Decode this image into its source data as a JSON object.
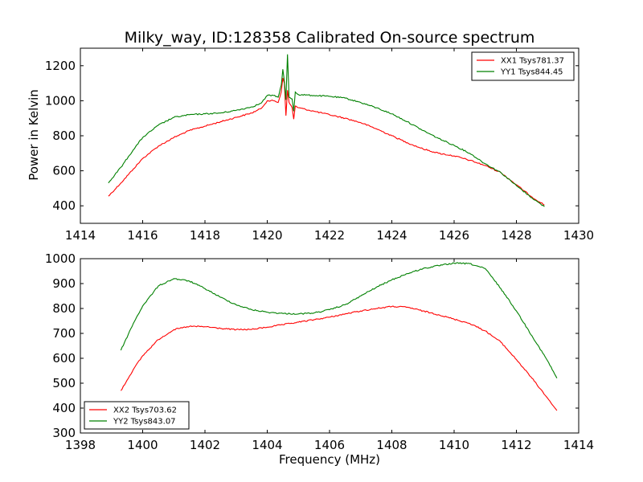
{
  "chart_data": [
    {
      "type": "line",
      "title": "Milky_way, ID:128358 Calibrated On-source spectrum",
      "xlabel": "",
      "ylabel": "Power in Kelvin",
      "xlim": [
        1414,
        1430
      ],
      "ylim": [
        300,
        1300
      ],
      "xticks": [
        1414,
        1416,
        1418,
        1420,
        1422,
        1424,
        1426,
        1428,
        1430
      ],
      "yticks": [
        400,
        600,
        800,
        1000,
        1200
      ],
      "legend_position": "top-right",
      "series": [
        {
          "name": "XX1 Tsys781.37",
          "color": "#ff0000",
          "x": [
            1414.9,
            1415.3,
            1415.7,
            1416.0,
            1416.5,
            1417.0,
            1417.5,
            1418.0,
            1418.5,
            1419.0,
            1419.5,
            1419.8,
            1420.0,
            1420.2,
            1420.35,
            1420.45,
            1420.5,
            1420.55,
            1420.6,
            1420.65,
            1420.7,
            1420.8,
            1420.85,
            1420.9,
            1421.0,
            1421.5,
            1422.0,
            1422.5,
            1423.0,
            1423.5,
            1424.0,
            1424.5,
            1425.0,
            1425.5,
            1426.0,
            1426.5,
            1427.0,
            1427.5,
            1428.0,
            1428.5,
            1428.9
          ],
          "values": [
            455,
            530,
            610,
            670,
            740,
            790,
            830,
            855,
            880,
            905,
            930,
            955,
            1000,
            1000,
            990,
            1050,
            1130,
            1100,
            915,
            1060,
            990,
            960,
            895,
            970,
            960,
            940,
            920,
            900,
            875,
            840,
            800,
            760,
            725,
            700,
            685,
            660,
            630,
            590,
            520,
            450,
            405
          ]
        },
        {
          "name": "YY1 Tsys844.45",
          "color": "#008000",
          "x": [
            1414.9,
            1415.3,
            1415.7,
            1416.0,
            1416.5,
            1417.0,
            1417.5,
            1418.0,
            1418.5,
            1419.0,
            1419.5,
            1419.8,
            1420.0,
            1420.2,
            1420.35,
            1420.45,
            1420.5,
            1420.55,
            1420.6,
            1420.65,
            1420.7,
            1420.8,
            1420.85,
            1420.9,
            1421.0,
            1421.5,
            1422.0,
            1422.5,
            1423.0,
            1423.5,
            1424.0,
            1424.5,
            1425.0,
            1425.5,
            1426.0,
            1426.5,
            1427.0,
            1427.5,
            1428.0,
            1428.5,
            1428.9
          ],
          "values": [
            530,
            620,
            720,
            790,
            860,
            905,
            920,
            925,
            930,
            945,
            965,
            985,
            1030,
            1030,
            1020,
            1090,
            1180,
            1110,
            1005,
            1265,
            1020,
            1010,
            940,
            1050,
            1035,
            1030,
            1025,
            1015,
            990,
            960,
            925,
            880,
            830,
            785,
            745,
            700,
            640,
            590,
            515,
            445,
            395
          ]
        }
      ]
    },
    {
      "type": "line",
      "title": "",
      "xlabel": "Frequency (MHz)",
      "ylabel": "",
      "xlim": [
        1398,
        1414
      ],
      "ylim": [
        300,
        1000
      ],
      "xticks": [
        1398,
        1400,
        1402,
        1404,
        1406,
        1408,
        1410,
        1412,
        1414
      ],
      "yticks": [
        300,
        400,
        500,
        600,
        700,
        800,
        900,
        1000
      ],
      "legend_position": "bottom-left",
      "series": [
        {
          "name": "XX2 Tsys703.62",
          "color": "#ff0000",
          "x": [
            1399.3,
            1399.7,
            1400.0,
            1400.5,
            1401.0,
            1401.5,
            1402.0,
            1402.5,
            1403.0,
            1403.5,
            1404.0,
            1404.5,
            1405.0,
            1405.5,
            1406.0,
            1406.5,
            1407.0,
            1407.5,
            1408.0,
            1408.5,
            1409.0,
            1409.5,
            1410.0,
            1410.5,
            1411.0,
            1411.5,
            1412.0,
            1412.5,
            1413.0,
            1413.3
          ],
          "values": [
            470,
            555,
            610,
            675,
            715,
            728,
            727,
            720,
            715,
            716,
            725,
            735,
            745,
            755,
            765,
            778,
            790,
            800,
            808,
            805,
            790,
            775,
            757,
            740,
            710,
            665,
            595,
            520,
            440,
            390
          ]
        },
        {
          "name": "YY2 Tsys843.07",
          "color": "#008000",
          "x": [
            1399.3,
            1399.7,
            1400.0,
            1400.5,
            1401.0,
            1401.5,
            1402.0,
            1402.5,
            1403.0,
            1403.5,
            1404.0,
            1404.5,
            1405.0,
            1405.5,
            1406.0,
            1406.5,
            1407.0,
            1407.5,
            1408.0,
            1408.5,
            1409.0,
            1409.5,
            1410.0,
            1410.5,
            1411.0,
            1411.5,
            1412.0,
            1412.5,
            1413.0,
            1413.3
          ],
          "values": [
            632,
            740,
            810,
            890,
            920,
            910,
            880,
            845,
            815,
            795,
            785,
            780,
            778,
            782,
            795,
            815,
            850,
            885,
            915,
            940,
            960,
            972,
            982,
            980,
            960,
            880,
            790,
            690,
            590,
            520
          ]
        }
      ]
    }
  ]
}
